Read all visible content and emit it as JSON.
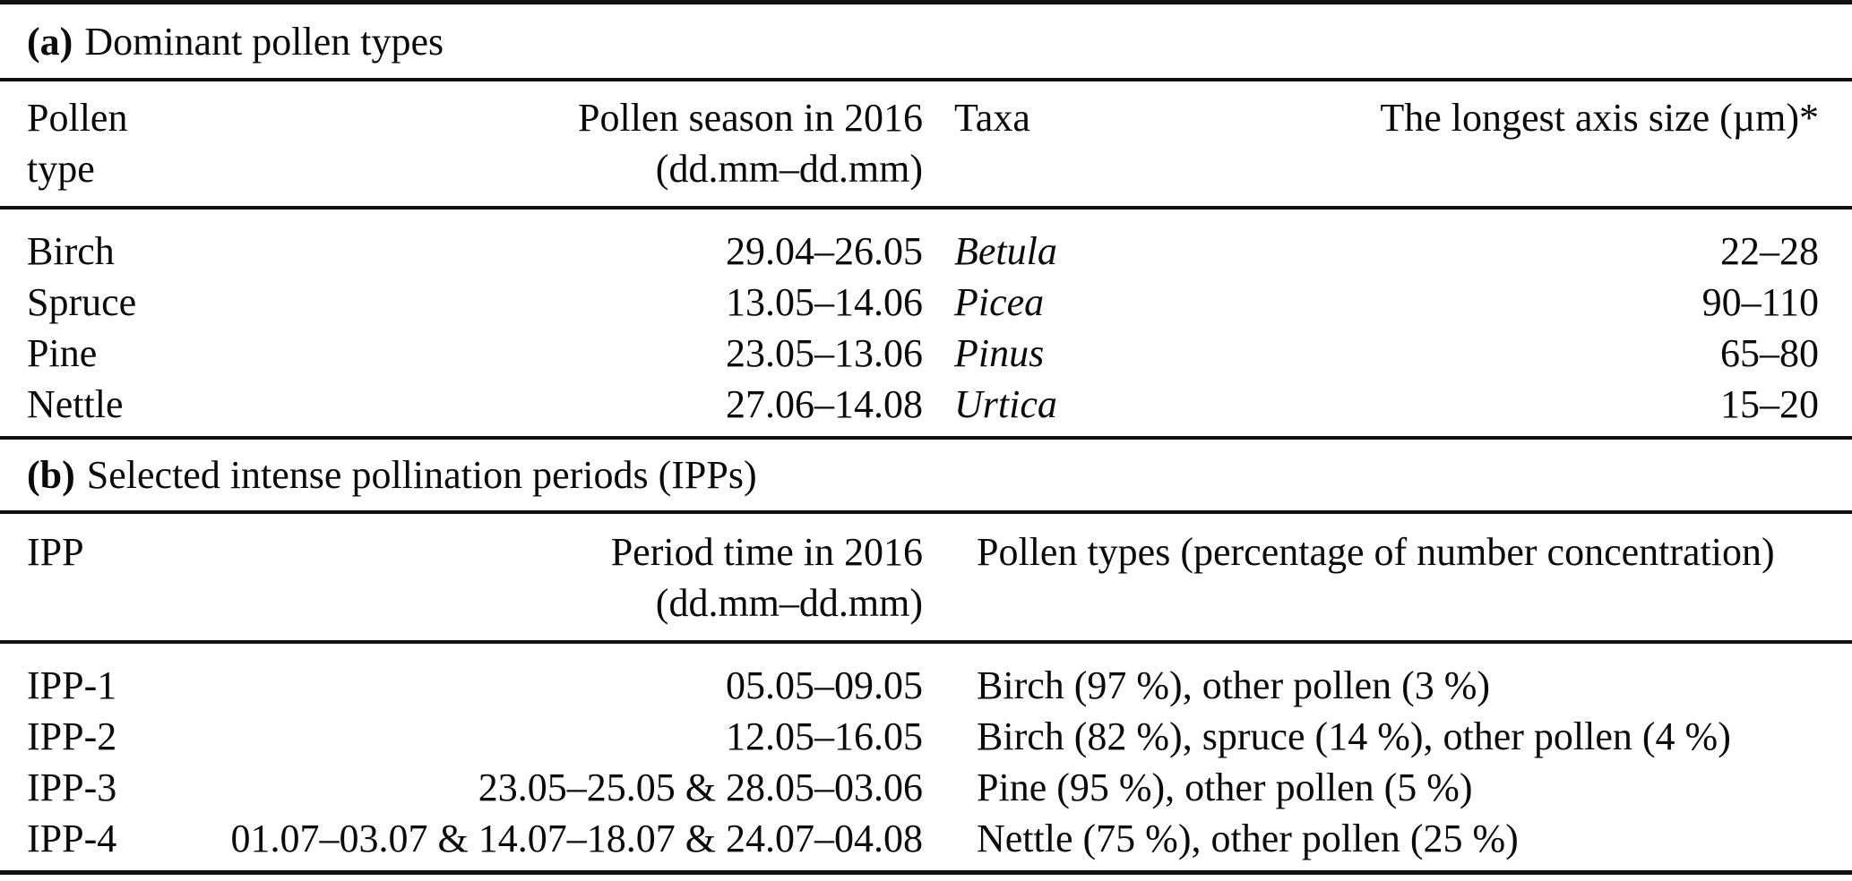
{
  "section_a": {
    "title_marker": "(a)",
    "title": "Dominant pollen types",
    "headers": {
      "col1_line1": "Pollen",
      "col1_line2": "type",
      "col2_line1": "Pollen season in 2016",
      "col2_line2": "(dd.mm–dd.mm)",
      "col3": "Taxa",
      "col4": "The longest axis size (µm)*"
    },
    "rows": [
      {
        "pollen_type": "Birch",
        "season": "29.04–26.05",
        "taxa": "Betula",
        "size": "22–28"
      },
      {
        "pollen_type": "Spruce",
        "season": "13.05–14.06",
        "taxa": "Picea",
        "size": "90–110"
      },
      {
        "pollen_type": "Pine",
        "season": "23.05–13.06",
        "taxa": "Pinus",
        "size": "65–80"
      },
      {
        "pollen_type": "Nettle",
        "season": "27.06–14.08",
        "taxa": "Urtica",
        "size": "15–20"
      }
    ]
  },
  "section_b": {
    "title_marker": "(b)",
    "title": "Selected intense pollination periods (IPPs)",
    "headers": {
      "col1": "IPP",
      "col2_line1": "Period time in 2016",
      "col2_line2": "(dd.mm–dd.mm)",
      "col3": "Pollen types (percentage of number concentration)"
    },
    "rows": [
      {
        "ipp": "IPP-1",
        "period": "05.05–09.05",
        "pollen_types": "Birch (97 %), other pollen (3 %)"
      },
      {
        "ipp": "IPP-2",
        "period": "12.05–16.05",
        "pollen_types": "Birch (82 %), spruce (14 %), other pollen (4 %)"
      },
      {
        "ipp": "IPP-3",
        "period": "23.05–25.05 & 28.05–03.06",
        "pollen_types": "Pine (95 %), other pollen (5 %)"
      },
      {
        "ipp": "IPP-4",
        "period": "01.07–03.07 & 14.07–18.07 & 24.07–04.08",
        "pollen_types": "Nettle (75 %), other pollen (25 %)"
      }
    ]
  }
}
